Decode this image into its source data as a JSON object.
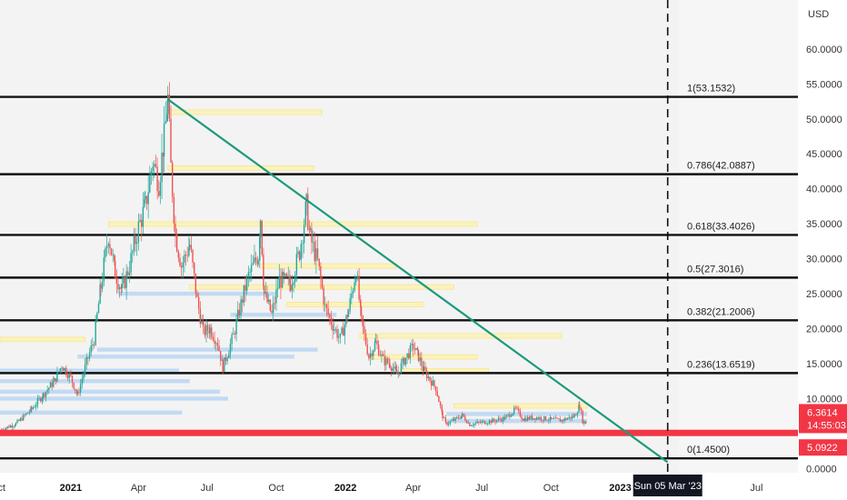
{
  "chart_data": {
    "type": "candlestick",
    "currency": "USD",
    "y_axis": {
      "ticks": [
        "60.0000",
        "55.0000",
        "50.0000",
        "45.0000",
        "40.0000",
        "35.0000",
        "30.0000",
        "25.0000",
        "20.0000",
        "15.0000",
        "10.0000",
        "0.0000"
      ],
      "tick_values": [
        60,
        55,
        50,
        45,
        40,
        35,
        30,
        25,
        20,
        15,
        10,
        0
      ],
      "range": [
        -0.6,
        67
      ]
    },
    "x_axis": {
      "tick_labels": [
        {
          "label": "ct",
          "date": "2020-10-01",
          "bold": false
        },
        {
          "label": "2021",
          "date": "2021-01-01",
          "bold": true
        },
        {
          "label": "Apr",
          "date": "2021-04-01",
          "bold": false
        },
        {
          "label": "Jul",
          "date": "2021-07-01",
          "bold": false
        },
        {
          "label": "Oct",
          "date": "2021-10-01",
          "bold": false
        },
        {
          "label": "2022",
          "date": "2022-01-01",
          "bold": true
        },
        {
          "label": "Apr",
          "date": "2022-04-01",
          "bold": false
        },
        {
          "label": "Jul",
          "date": "2022-07-01",
          "bold": false
        },
        {
          "label": "Oct",
          "date": "2022-10-01",
          "bold": false
        },
        {
          "label": "2023",
          "date": "2023-01-01",
          "bold": true
        },
        {
          "label": "Jul",
          "date": "2023-07-01",
          "bold": false
        }
      ],
      "range": [
        "2020-09-29",
        "2023-08-25"
      ]
    },
    "crosshair": {
      "date": "2023-03-05",
      "label": "Sun 05 Mar '23"
    },
    "fib_levels": [
      {
        "ratio": "1",
        "price": 53.1532,
        "label": "1(53.1532)"
      },
      {
        "ratio": "0.786",
        "price": 42.0887,
        "label": "0.786(42.0887)"
      },
      {
        "ratio": "0.618",
        "price": 33.4026,
        "label": "0.618(33.4026)"
      },
      {
        "ratio": "0.5",
        "price": 27.3016,
        "label": "0.5(27.3016)"
      },
      {
        "ratio": "0.382",
        "price": 21.2006,
        "label": "0.382(21.2006)"
      },
      {
        "ratio": "0.236",
        "price": 13.6519,
        "label": "0.236(13.6519)"
      },
      {
        "ratio": "0",
        "price": 1.45,
        "label": "0(1.4500)"
      }
    ],
    "support_line": {
      "price": 5.0922
    },
    "trendline": {
      "start": {
        "date": "2021-05-10",
        "price": 52.8
      },
      "end": {
        "date": "2023-03-05",
        "price": 0.9
      }
    },
    "price_tags": [
      {
        "name": "last-price",
        "lines": [
          "6.3614",
          "14:55:03"
        ],
        "price": 6.3614,
        "color": "#f23645"
      },
      {
        "name": "support-price",
        "lines": [
          "5.0922"
        ],
        "price": 5.0922,
        "color": "#f23645"
      }
    ],
    "price_series": [
      [
        "2020-10-01",
        5.6
      ],
      [
        "2020-10-20",
        6.4
      ],
      [
        "2020-11-10",
        8.5
      ],
      [
        "2020-11-25",
        10.5
      ],
      [
        "2020-12-10",
        12.5
      ],
      [
        "2020-12-20",
        14.8
      ],
      [
        "2021-01-01",
        13.0
      ],
      [
        "2021-01-10",
        10.5
      ],
      [
        "2021-01-20",
        14.5
      ],
      [
        "2021-02-01",
        18.5
      ],
      [
        "2021-02-10",
        26.0
      ],
      [
        "2021-02-20",
        33.5
      ],
      [
        "2021-03-01",
        28.0
      ],
      [
        "2021-03-10",
        25.5
      ],
      [
        "2021-03-20",
        29.0
      ],
      [
        "2021-04-01",
        34.5
      ],
      [
        "2021-04-10",
        37.5
      ],
      [
        "2021-04-20",
        44.0
      ],
      [
        "2021-04-28",
        41.0
      ],
      [
        "2021-05-05",
        47.0
      ],
      [
        "2021-05-10",
        52.8
      ],
      [
        "2021-05-14",
        43.0
      ],
      [
        "2021-05-20",
        33.5
      ],
      [
        "2021-05-28",
        29.0
      ],
      [
        "2021-06-08",
        32.0
      ],
      [
        "2021-06-18",
        24.0
      ],
      [
        "2021-06-26",
        19.5
      ],
      [
        "2021-07-05",
        20.0
      ],
      [
        "2021-07-15",
        18.0
      ],
      [
        "2021-07-22",
        14.5
      ],
      [
        "2021-08-05",
        19.0
      ],
      [
        "2021-08-15",
        23.5
      ],
      [
        "2021-08-25",
        27.5
      ],
      [
        "2021-09-07",
        30.5
      ],
      [
        "2021-09-10",
        36.0
      ],
      [
        "2021-09-15",
        25.0
      ],
      [
        "2021-09-25",
        22.0
      ],
      [
        "2021-10-05",
        27.0
      ],
      [
        "2021-10-20",
        26.5
      ],
      [
        "2021-11-01",
        31.0
      ],
      [
        "2021-11-10",
        37.5
      ],
      [
        "2021-11-15",
        33.0
      ],
      [
        "2021-11-25",
        29.5
      ],
      [
        "2021-12-05",
        23.0
      ],
      [
        "2021-12-15",
        20.5
      ],
      [
        "2021-12-25",
        18.5
      ],
      [
        "2022-01-05",
        22.5
      ],
      [
        "2022-01-15",
        28.5
      ],
      [
        "2022-01-22",
        21.0
      ],
      [
        "2022-02-01",
        16.0
      ],
      [
        "2022-02-10",
        18.0
      ],
      [
        "2022-02-20",
        15.5
      ],
      [
        "2022-03-01",
        15.0
      ],
      [
        "2022-03-10",
        13.5
      ],
      [
        "2022-03-20",
        15.5
      ],
      [
        "2022-04-01",
        17.5
      ],
      [
        "2022-04-08",
        16.0
      ],
      [
        "2022-04-15",
        14.0
      ],
      [
        "2022-05-01",
        11.5
      ],
      [
        "2022-05-10",
        7.5
      ],
      [
        "2022-05-14",
        6.4
      ],
      [
        "2022-05-25",
        6.9
      ],
      [
        "2022-06-05",
        7.6
      ],
      [
        "2022-06-15",
        6.3
      ],
      [
        "2022-07-01",
        6.6
      ],
      [
        "2022-07-15",
        6.8
      ],
      [
        "2022-08-01",
        7.2
      ],
      [
        "2022-08-15",
        8.5
      ],
      [
        "2022-08-25",
        7.1
      ],
      [
        "2022-09-10",
        7.3
      ],
      [
        "2022-10-01",
        7.0
      ],
      [
        "2022-10-15",
        6.9
      ],
      [
        "2022-11-01",
        7.5
      ],
      [
        "2022-11-08",
        9.0
      ],
      [
        "2022-11-12",
        6.8
      ],
      [
        "2022-11-18",
        6.36
      ]
    ],
    "volume_profile_bars": [
      {
        "price": 8.0,
        "side": "left",
        "x0": "2020-09-29",
        "x1": "2021-05-29",
        "color": "blue"
      },
      {
        "price": 10.0,
        "side": "left",
        "x0": "2020-09-29",
        "x1": "2021-07-29",
        "color": "blue"
      },
      {
        "price": 11.0,
        "side": "left",
        "x0": "2020-09-29",
        "x1": "2021-07-18",
        "color": "blue"
      },
      {
        "price": 12.5,
        "side": "left",
        "x0": "2020-09-29",
        "x1": "2021-06-08",
        "color": "blue"
      },
      {
        "price": 14.0,
        "side": "left",
        "x0": "2020-09-29",
        "x1": "2021-05-25",
        "color": "blue"
      },
      {
        "price": -1.0,
        "side": "left",
        "x0": "2020-09-29",
        "x1": "2020-12-20",
        "color": "blue"
      },
      {
        "price": -2.0,
        "side": "left",
        "x0": "2020-09-29",
        "x1": "2021-03-20",
        "color": "blue"
      },
      {
        "price": 16.0,
        "side": "left",
        "x0": "2021-01-10",
        "x1": "2021-10-25",
        "color": "blue"
      },
      {
        "price": 17.0,
        "side": "left",
        "x0": "2021-02-05",
        "x1": "2021-11-25",
        "color": "blue"
      },
      {
        "price": 18.5,
        "side": "left",
        "x0": "2020-09-29",
        "x1": "2021-01-20",
        "color": "yellow"
      },
      {
        "price": 22.0,
        "side": "left",
        "x0": "2021-08-01",
        "x1": "2021-12-20",
        "color": "blue"
      },
      {
        "price": 23.5,
        "side": "left",
        "x0": "2021-10-15",
        "x1": "2022-04-15",
        "color": "yellow"
      },
      {
        "price": 25.0,
        "side": "left",
        "x0": "2021-03-05",
        "x1": "2021-09-30",
        "color": "blue"
      },
      {
        "price": 26.0,
        "side": "left",
        "x0": "2021-06-08",
        "x1": "2022-05-25",
        "color": "yellow"
      },
      {
        "price": 29.0,
        "side": "left",
        "x0": "2021-09-10",
        "x1": "2022-03-10",
        "color": "yellow"
      },
      {
        "price": 35.0,
        "side": "left",
        "x0": "2021-02-20",
        "x1": "2022-06-25",
        "color": "yellow"
      },
      {
        "price": 43.0,
        "side": "left",
        "x0": "2021-05-10",
        "x1": "2021-11-20",
        "color": "yellow"
      },
      {
        "price": 51.0,
        "side": "left",
        "x0": "2021-05-10",
        "x1": "2021-12-01",
        "color": "yellow"
      },
      {
        "price": 19.0,
        "side": "right",
        "x0": "2022-01-20",
        "x1": "2022-10-15",
        "color": "yellow"
      },
      {
        "price": 16.0,
        "side": "right",
        "x0": "2022-02-05",
        "x1": "2022-06-25",
        "color": "yellow"
      },
      {
        "price": 14.0,
        "side": "right",
        "x0": "2022-03-15",
        "x1": "2022-07-10",
        "color": "yellow"
      },
      {
        "price": 9.0,
        "side": "right",
        "x0": "2022-05-25",
        "x1": "2022-11-18",
        "color": "yellow"
      },
      {
        "price": 7.8,
        "side": "right",
        "x0": "2022-05-15",
        "x1": "2022-11-18",
        "color": "blue"
      },
      {
        "price": 6.8,
        "side": "right",
        "x0": "2022-05-15",
        "x1": "2022-11-18",
        "color": "blue"
      }
    ],
    "colors": {
      "up": "#26a69a",
      "down": "#ef5350",
      "fib_line": "#111111",
      "trendline": "#1b9a7c",
      "support": "#f23645",
      "profile_blue": "#bcd7f3",
      "profile_yellow": "#fff3a8",
      "profile_yellow_edge": "#f6df6a",
      "plot_bg": "#f3f3f3",
      "crosshair": "#111111"
    },
    "grid": false
  }
}
